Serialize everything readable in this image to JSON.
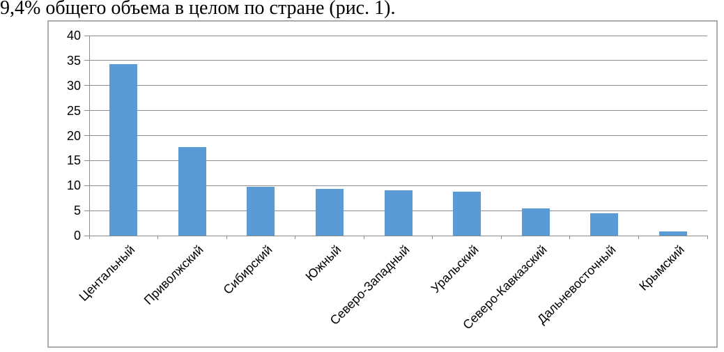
{
  "caption": "9,4% общего объема в целом по стране (рис. 1).",
  "chart_data": {
    "type": "bar",
    "title": "",
    "xlabel": "",
    "ylabel": "",
    "categories": [
      "Центальный",
      "Приволжский",
      "Сибирский",
      "Южный",
      "Северо-Западный",
      "Уральский",
      "Северо-Кавказский",
      "Дальневосточный",
      "Крымский"
    ],
    "values": [
      34.3,
      17.7,
      9.7,
      9.3,
      9.0,
      8.8,
      5.5,
      4.4,
      0.8
    ],
    "ylim": [
      0,
      40
    ],
    "yticks": [
      0,
      5,
      10,
      15,
      20,
      25,
      30,
      35,
      40
    ],
    "grid": true,
    "legend": false,
    "colors": {
      "bar": "#5B9BD5",
      "gridline": "#8C8C8C",
      "axis": "#8C8C8C",
      "frame": "#ABABAB",
      "text": "#000000"
    }
  }
}
